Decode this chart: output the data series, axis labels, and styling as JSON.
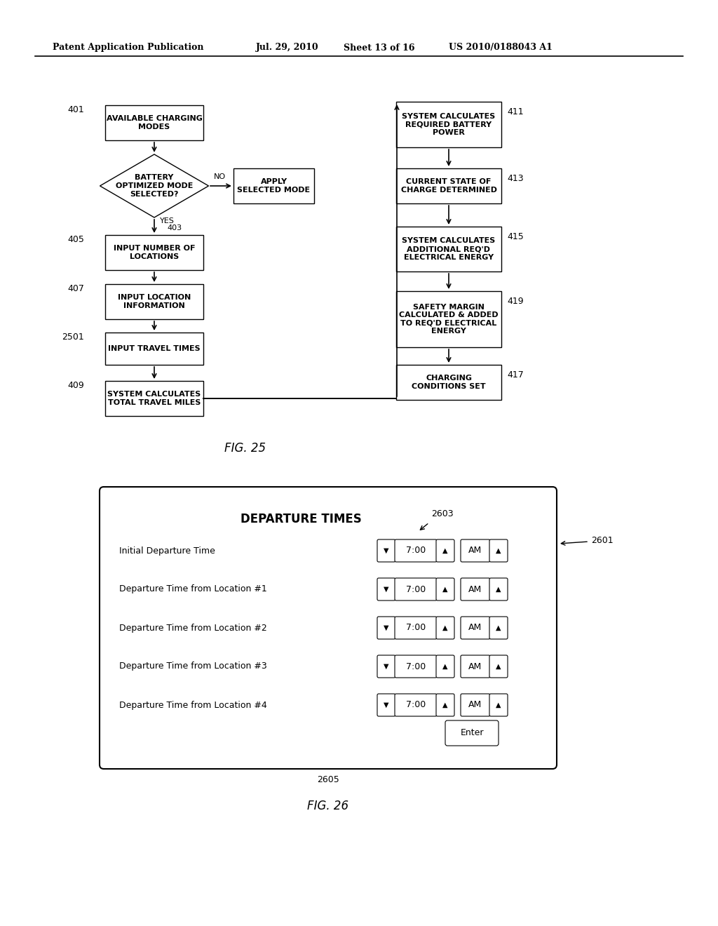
{
  "bg_color": "#ffffff",
  "header_text": "Patent Application Publication",
  "header_date": "Jul. 29, 2010",
  "header_sheet": "Sheet 13 of 16",
  "header_patent": "US 2010/0188043 A1",
  "fig25_label": "FIG. 25",
  "fig26_label": "FIG. 26",
  "ui_title": "DEPARTURE TIMES",
  "rows": [
    "Initial Departure Time",
    "Departure Time from Location #1",
    "Departure Time from Location #2",
    "Departure Time from Location #3",
    "Departure Time from Location #4"
  ],
  "time_value": "7:00",
  "am_value": "AM"
}
